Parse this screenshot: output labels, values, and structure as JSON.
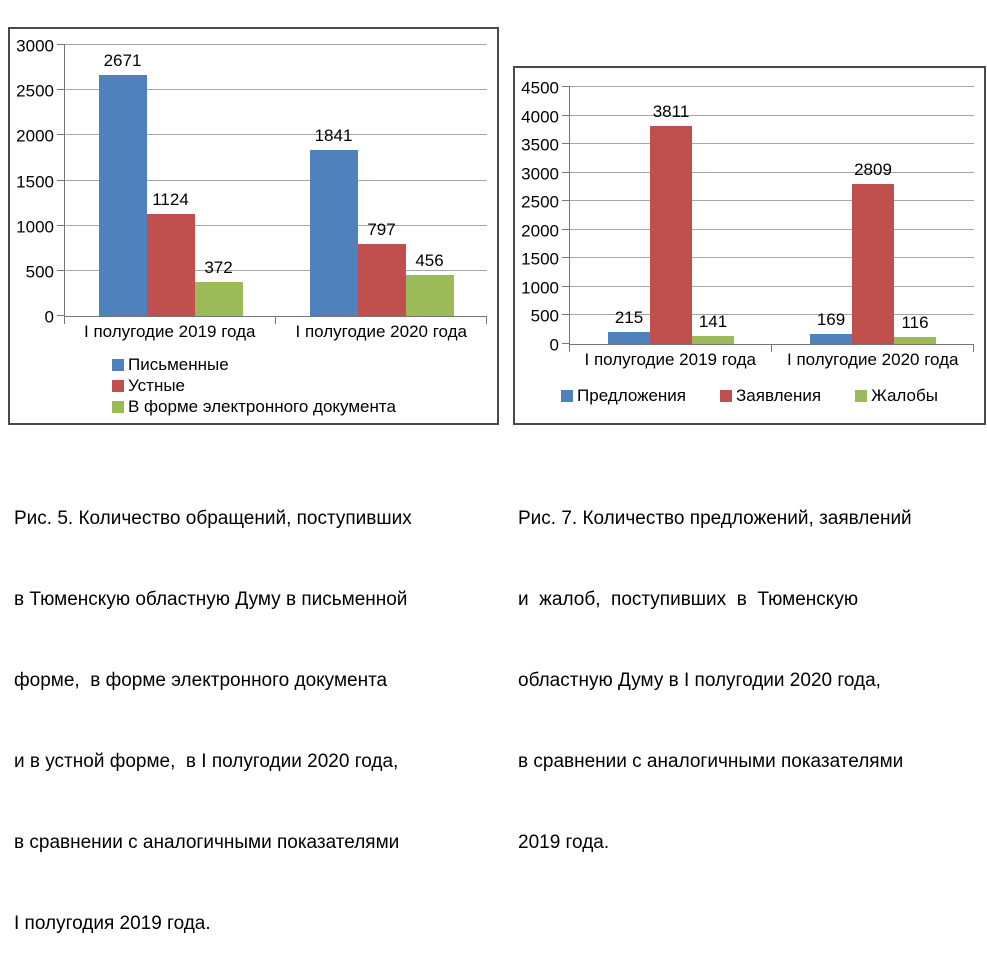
{
  "chart_data": [
    {
      "type": "bar",
      "title": "",
      "categories": [
        "I полугодие 2019 года",
        "I полугодие 2020 года"
      ],
      "series": [
        {
          "name": "Письменные",
          "color": "#4F81BD",
          "values": [
            2671,
            1841
          ]
        },
        {
          "name": "Устные",
          "color": "#C0504D",
          "values": [
            1124,
            797
          ]
        },
        {
          "name": "В форме электронного документа",
          "color": "#9BBB59",
          "values": [
            372,
            456
          ]
        }
      ],
      "ylim": [
        0,
        3000
      ],
      "ystep": 500,
      "grid": true,
      "legend_position": "bottom-left-vertical",
      "bar_value_labels": true
    },
    {
      "type": "bar",
      "title": "",
      "categories": [
        "I полугодие 2019 года",
        "I полугодие 2020 года"
      ],
      "series": [
        {
          "name": "Предложения",
          "color": "#4F81BD",
          "values": [
            215,
            169
          ]
        },
        {
          "name": "Заявления",
          "color": "#C0504D",
          "values": [
            3811,
            2809
          ]
        },
        {
          "name": "Жалобы",
          "color": "#9BBB59",
          "values": [
            141,
            116
          ]
        }
      ],
      "ylim": [
        0,
        4500
      ],
      "ystep": 500,
      "grid": true,
      "legend_position": "bottom-horizontal",
      "bar_value_labels": true
    }
  ],
  "captions": [
    {
      "lines": [
        "Рис. 5. Количество обращений, поступивших",
        "в Тюменскую областную Думу в письменной",
        "форме,  в форме электронного документа",
        "и в устной форме,  в I полугодии 2020 года,",
        "в сравнении с аналогичными показателями",
        "I полугодия 2019 года."
      ]
    },
    {
      "lines": [
        "Рис. 7. Количество предложений, заявлений",
        "и  жалоб,  поступивших  в  Тюменскую",
        "областную Думу в I полугодии 2020 года,",
        "в сравнении с аналогичными показателями",
        "2019 года."
      ]
    }
  ]
}
